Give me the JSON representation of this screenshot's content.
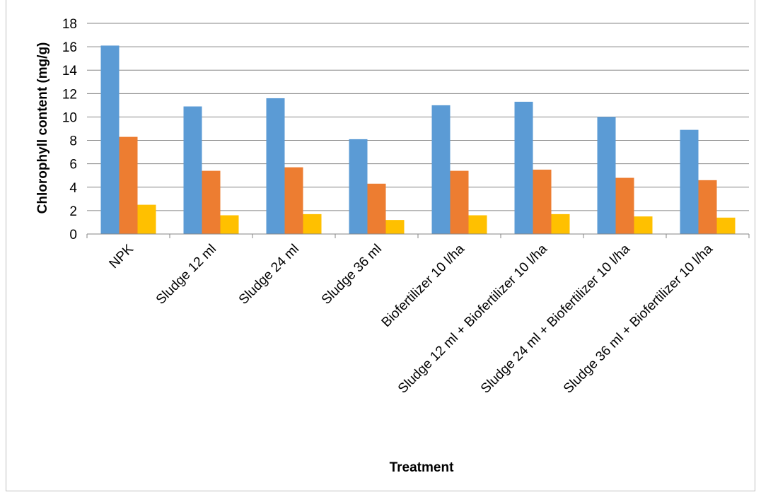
{
  "chart_data": {
    "type": "bar",
    "title": "",
    "xlabel": "Treatment",
    "ylabel": "Chlorophyll content  (mg/g)",
    "ylim": [
      0,
      18
    ],
    "yticks": [
      "0",
      "2",
      "4",
      "6",
      "8",
      "10",
      "12",
      "14",
      "16",
      "18"
    ],
    "grid": true,
    "legend": "none",
    "categories": [
      "NPK",
      "Sludge 12 ml",
      "Sludge 24 ml",
      "Sludge 36 ml",
      "Biofertilizer 10 l/ha",
      "Sludge 12 ml + Biofertilizer 10 l/ha",
      "Sludge 24 ml + Biofertilizer 10 l/ha",
      "Sludge 36 ml + Biofertilizer 10 l/ha"
    ],
    "series": [
      {
        "color": "#5b9bd5",
        "values": [
          16.1,
          10.9,
          11.6,
          8.1,
          11.0,
          11.3,
          10.0,
          8.9
        ]
      },
      {
        "color": "#ed7d31",
        "values": [
          8.3,
          5.4,
          5.7,
          4.3,
          5.4,
          5.5,
          4.8,
          4.6
        ]
      },
      {
        "color": "#ffc000",
        "values": [
          2.5,
          1.6,
          1.7,
          1.2,
          1.6,
          1.7,
          1.5,
          1.4
        ]
      }
    ]
  }
}
